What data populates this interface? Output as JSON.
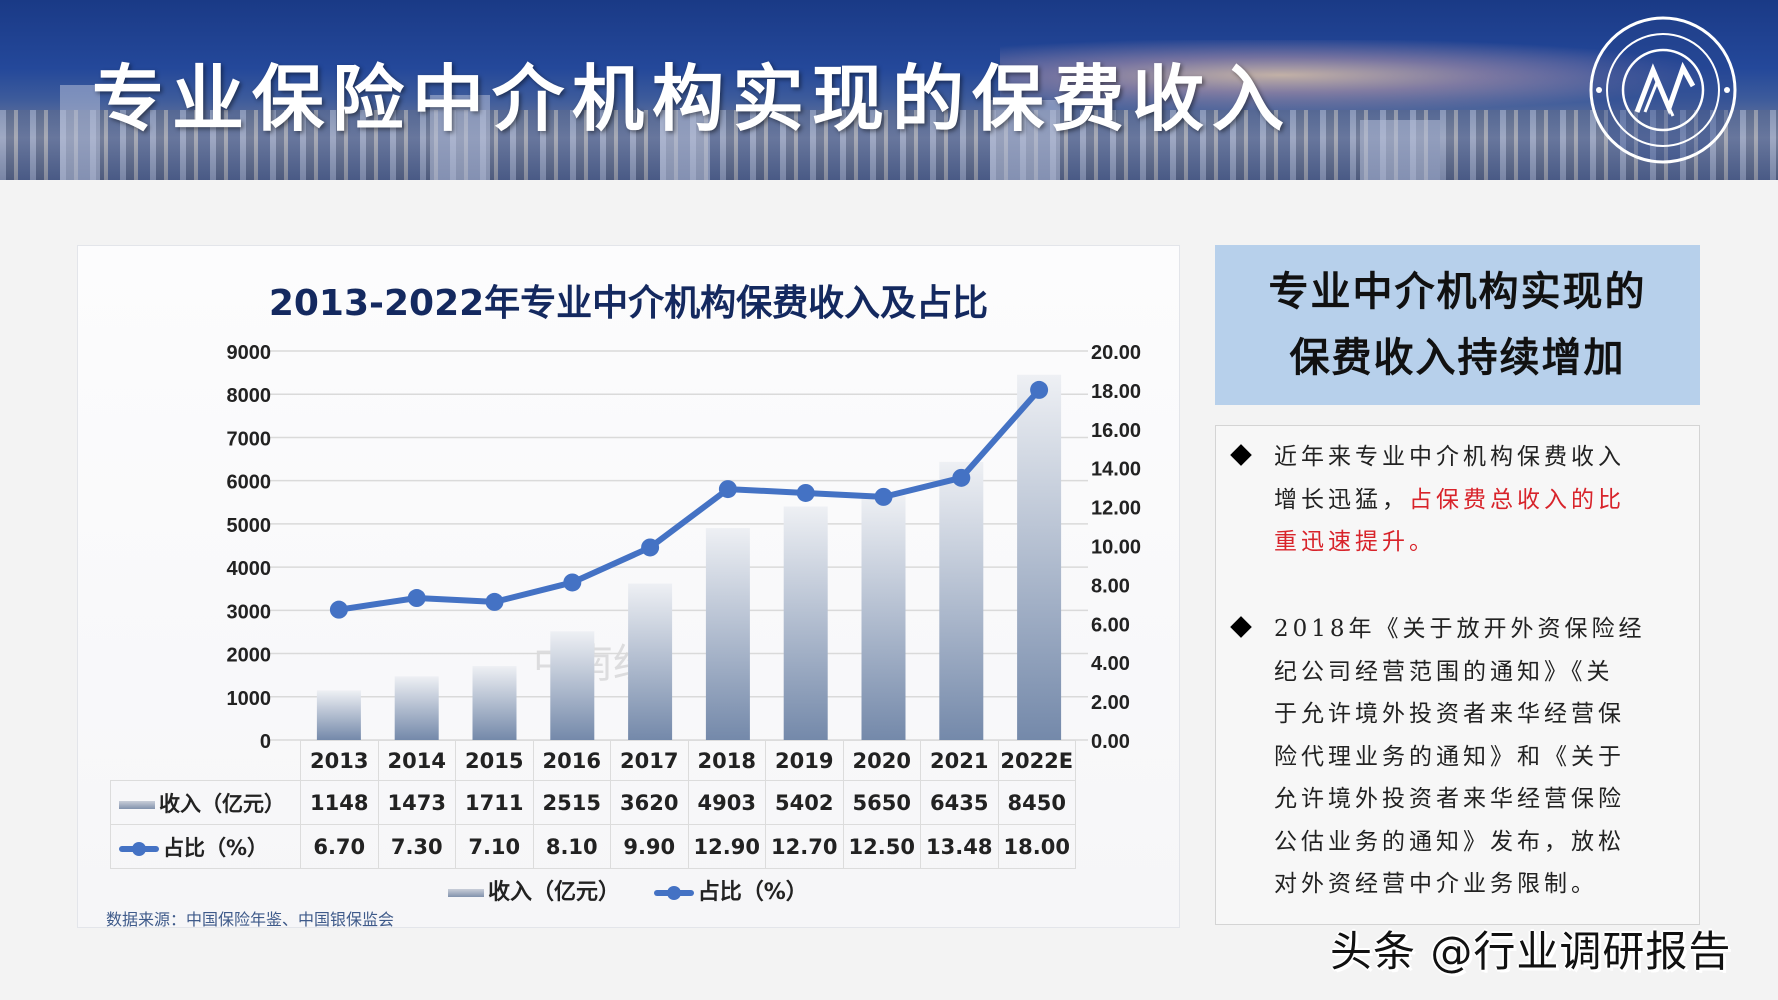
{
  "banner": {
    "title": "专业保险中介机构实现的保费收入",
    "logo_icon": "circular-seal-logo-icon"
  },
  "chart_panel": {
    "title": "2013-2022年专业中介机构保费收入及占比",
    "faint_watermark": "中南经",
    "table": {
      "row_income_label": "收入（亿元）",
      "row_share_label": "占比（%）"
    },
    "legend": {
      "income": "收入（亿元）",
      "share": "占比（%）"
    },
    "source": "数据来源：中国保险年鉴、中国银保监会"
  },
  "chart_data": {
    "type": "bar+line",
    "title": "2013-2022年专业中介机构保费收入及占比",
    "categories": [
      "2013",
      "2014",
      "2015",
      "2016",
      "2017",
      "2018",
      "2019",
      "2020",
      "2021",
      "2022E"
    ],
    "series": [
      {
        "name": "收入（亿元）",
        "type": "bar",
        "axis": "left",
        "values": [
          1148,
          1473,
          1711,
          2515,
          3620,
          4903,
          5402,
          5650,
          6435,
          8450
        ]
      },
      {
        "name": "占比（%）",
        "type": "line",
        "axis": "right",
        "values": [
          "6.70",
          "7.30",
          "7.10",
          "8.10",
          "9.90",
          "12.90",
          "12.70",
          "12.50",
          "13.48",
          "18.00"
        ]
      }
    ],
    "left_axis": {
      "ylim": [
        0,
        9000
      ],
      "ticks": [
        "9000",
        "8000",
        "7000",
        "6000",
        "5000",
        "4000",
        "3000",
        "2000",
        "1000",
        "0"
      ]
    },
    "right_axis": {
      "ylim": [
        0,
        20
      ],
      "ticks": [
        "20.00",
        "18.00",
        "16.00",
        "14.00",
        "12.00",
        "10.00",
        "8.00",
        "6.00",
        "4.00",
        "2.00",
        "0.00"
      ]
    },
    "grid": true,
    "legend_position": "bottom",
    "colors": {
      "bar_top": "#e6e8ee",
      "bar_bottom": "#7a8fb0",
      "line": "#4472c4"
    }
  },
  "side": {
    "header_line1": "专业中介机构实现的",
    "header_line2": "保费收入持续增加",
    "bullet1": {
      "lines": [
        "近年来专业中介机构保费收入",
        "增长迅猛，"
      ],
      "red": [
        "占保费总收入的比",
        "重迅速提升。"
      ]
    },
    "bullet2": {
      "lines": [
        "2018年《关于放开外资保险经",
        "纪公司经营范围的通知》《关",
        "于允许境外投资者来华经营保",
        "险代理业务的通知》和《关于",
        "允许境外投资者来华经营保险",
        "公估业务的通知》发布，放松",
        "对外资经营中介业务限制。"
      ]
    }
  },
  "footer": {
    "watermark": "头条 @行业调研报告"
  }
}
